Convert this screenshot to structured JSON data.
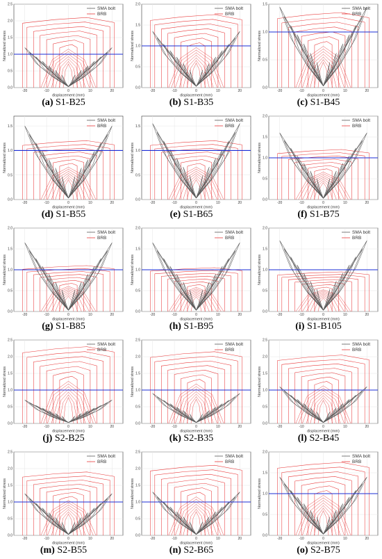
{
  "colors": {
    "sma": "#5a5a5a",
    "brb": "#e8393a",
    "threshold": "#1a2bd6",
    "grid": "#e6e6e6",
    "axis": "#333333"
  },
  "chart_data": [
    {
      "type": "line",
      "label": "(a)",
      "name": "S1-B25",
      "xlabel": "displacement (mm)",
      "ylabel": "Normalized stress",
      "xlim": [
        -25,
        25
      ],
      "ylim": [
        0,
        2.5
      ],
      "yticks": [
        0,
        0.5,
        1.0,
        1.5,
        2.0,
        2.5
      ],
      "xticks": [
        -20,
        -10,
        0,
        10,
        20
      ],
      "threshold": 1.0,
      "sma_peak": 1.2,
      "brb_peak": 2.1,
      "series": [
        {
          "name": "SMA bolt"
        },
        {
          "name": "BRB"
        }
      ]
    },
    {
      "type": "line",
      "label": "(b)",
      "name": "S1-B35",
      "xlabel": "displacement (mm)",
      "ylabel": "Normalized stress",
      "xlim": [
        -25,
        25
      ],
      "ylim": [
        0,
        2.0
      ],
      "yticks": [
        0,
        0.5,
        1.0,
        1.5,
        2.0
      ],
      "xticks": [
        -20,
        -10,
        0,
        10,
        20
      ],
      "threshold": 1.0,
      "sma_peak": 1.35,
      "brb_peak": 1.75,
      "series": [
        {
          "name": "SMA bolt"
        },
        {
          "name": "BRB"
        }
      ]
    },
    {
      "type": "line",
      "label": "(c)",
      "name": "S1-B45",
      "xlabel": "displacement (mm)",
      "ylabel": "Normalized stress",
      "xlim": [
        -25,
        25
      ],
      "ylim": [
        0,
        1.5
      ],
      "yticks": [
        0,
        0.5,
        1.0,
        1.5
      ],
      "xticks": [
        -20,
        -10,
        0,
        10,
        20
      ],
      "threshold": 1.0,
      "sma_peak": 1.45,
      "brb_peak": 1.35,
      "series": [
        {
          "name": "SMA bolt"
        },
        {
          "name": "BRB"
        }
      ]
    },
    {
      "type": "line",
      "label": "(d)",
      "name": "S1-B55",
      "xlabel": "displacement (mm)",
      "ylabel": "Normalized stress",
      "xlim": [
        -25,
        25
      ],
      "ylim": [
        0,
        1.7
      ],
      "yticks": [
        0,
        0.5,
        1.0,
        1.5
      ],
      "xticks": [
        -20,
        -10,
        0,
        10,
        20
      ],
      "threshold": 1.0,
      "sma_peak": 1.5,
      "brb_peak": 1.2,
      "series": [
        {
          "name": "SMA bolt"
        },
        {
          "name": "BRB"
        }
      ]
    },
    {
      "type": "line",
      "label": "(e)",
      "name": "S1-B65",
      "xlabel": "displacement (mm)",
      "ylabel": "Normalized stress",
      "xlim": [
        -25,
        25
      ],
      "ylim": [
        0,
        1.7
      ],
      "yticks": [
        0,
        0.5,
        1.0,
        1.5
      ],
      "xticks": [
        -20,
        -10,
        0,
        10,
        20
      ],
      "threshold": 1.0,
      "sma_peak": 1.55,
      "brb_peak": 1.2,
      "series": [
        {
          "name": "SMA bolt"
        },
        {
          "name": "BRB"
        }
      ]
    },
    {
      "type": "line",
      "label": "(f)",
      "name": "S1-B75",
      "xlabel": "displacement (mm)",
      "ylabel": "Normalized stress",
      "xlim": [
        -25,
        25
      ],
      "ylim": [
        0,
        2.0
      ],
      "yticks": [
        0,
        0.5,
        1.0,
        1.5,
        2.0
      ],
      "xticks": [
        -20,
        -10,
        0,
        10,
        20
      ],
      "threshold": 1.0,
      "sma_peak": 1.6,
      "brb_peak": 1.2,
      "series": [
        {
          "name": "SMA bolt"
        },
        {
          "name": "BRB"
        }
      ]
    },
    {
      "type": "line",
      "label": "(g)",
      "name": "S1-B85",
      "xlabel": "displacement (mm)",
      "ylabel": "Normalized stress",
      "xlim": [
        -25,
        25
      ],
      "ylim": [
        0,
        2.0
      ],
      "yticks": [
        0,
        0.5,
        1.0,
        1.5,
        2.0
      ],
      "xticks": [
        -20,
        -10,
        0,
        10,
        20
      ],
      "threshold": 1.0,
      "sma_peak": 1.65,
      "brb_peak": 1.1,
      "series": [
        {
          "name": "SMA bolt"
        },
        {
          "name": "BRB"
        }
      ]
    },
    {
      "type": "line",
      "label": "(h)",
      "name": "S1-B95",
      "xlabel": "displacement (mm)",
      "ylabel": "Normalized stress",
      "xlim": [
        -25,
        25
      ],
      "ylim": [
        0,
        2.0
      ],
      "yticks": [
        0,
        0.5,
        1.0,
        1.5,
        2.0
      ],
      "xticks": [
        -20,
        -10,
        0,
        10,
        20
      ],
      "threshold": 1.0,
      "sma_peak": 1.65,
      "brb_peak": 1.05,
      "series": [
        {
          "name": "SMA bolt"
        },
        {
          "name": "BRB"
        }
      ]
    },
    {
      "type": "line",
      "label": "(i)",
      "name": "S1-B105",
      "xlabel": "displacement (mm)",
      "ylabel": "Normalized stress",
      "xlim": [
        -25,
        25
      ],
      "ylim": [
        0,
        2.0
      ],
      "yticks": [
        0,
        0.5,
        1.0,
        1.5,
        2.0
      ],
      "xticks": [
        -20,
        -10,
        0,
        10,
        20
      ],
      "threshold": 1.0,
      "sma_peak": 1.7,
      "brb_peak": 0.95,
      "series": [
        {
          "name": "SMA bolt"
        },
        {
          "name": "BRB"
        }
      ]
    },
    {
      "type": "line",
      "label": "(j)",
      "name": "S2-B25",
      "xlabel": "displacement (mm)",
      "ylabel": "Normalized stress",
      "xlim": [
        -25,
        25
      ],
      "ylim": [
        0,
        2.5
      ],
      "yticks": [
        0,
        0.5,
        1.0,
        1.5,
        2.0,
        2.5
      ],
      "xticks": [
        -20,
        -10,
        0,
        10,
        20
      ],
      "threshold": 1.0,
      "sma_peak": 0.7,
      "brb_peak": 2.3,
      "series": [
        {
          "name": "SMA bolt"
        },
        {
          "name": "BRB"
        }
      ]
    },
    {
      "type": "line",
      "label": "(k)",
      "name": "S2-B35",
      "xlabel": "displacement (mm)",
      "ylabel": "Normalized stress",
      "xlim": [
        -25,
        25
      ],
      "ylim": [
        0,
        2.5
      ],
      "yticks": [
        0,
        0.5,
        1.0,
        1.5,
        2.0,
        2.5
      ],
      "xticks": [
        -20,
        -10,
        0,
        10,
        20
      ],
      "threshold": 1.0,
      "sma_peak": 0.9,
      "brb_peak": 2.15,
      "series": [
        {
          "name": "SMA bolt"
        },
        {
          "name": "BRB"
        }
      ]
    },
    {
      "type": "line",
      "label": "(l)",
      "name": "S2-B45",
      "xlabel": "displacement (mm)",
      "ylabel": "Normalized stress",
      "xlim": [
        -25,
        25
      ],
      "ylim": [
        0,
        2.5
      ],
      "yticks": [
        0,
        0.5,
        1.0,
        1.5,
        2.0,
        2.5
      ],
      "xticks": [
        -20,
        -10,
        0,
        10,
        20
      ],
      "threshold": 1.0,
      "sma_peak": 1.1,
      "brb_peak": 2.05,
      "series": [
        {
          "name": "SMA bolt"
        },
        {
          "name": "BRB"
        }
      ]
    },
    {
      "type": "line",
      "label": "(m)",
      "name": "S2-B55",
      "xlabel": "displacement (mm)",
      "ylabel": "Normalized stress",
      "xlim": [
        -25,
        25
      ],
      "ylim": [
        0,
        2.5
      ],
      "yticks": [
        0,
        0.5,
        1.0,
        1.5,
        2.0,
        2.5
      ],
      "xticks": [
        -20,
        -10,
        0,
        10,
        20
      ],
      "threshold": 1.0,
      "sma_peak": 1.25,
      "brb_peak": 1.9,
      "series": [
        {
          "name": "SMA bolt"
        },
        {
          "name": "BRB"
        }
      ]
    },
    {
      "type": "line",
      "label": "(n)",
      "name": "S2-B65",
      "xlabel": "displacement (mm)",
      "ylabel": "Normalized stress",
      "xlim": [
        -25,
        25
      ],
      "ylim": [
        0,
        2.5
      ],
      "yticks": [
        0,
        0.5,
        1.0,
        1.5,
        2.0,
        2.5
      ],
      "xticks": [
        -20,
        -10,
        0,
        10,
        20
      ],
      "threshold": 1.0,
      "sma_peak": 1.3,
      "brb_peak": 2.1,
      "series": [
        {
          "name": "SMA bolt"
        },
        {
          "name": "BRB"
        }
      ]
    },
    {
      "type": "line",
      "label": "(o)",
      "name": "S2-B75",
      "xlabel": "displacement (mm)",
      "ylabel": "Normalized stress",
      "xlim": [
        -25,
        25
      ],
      "ylim": [
        0,
        2.0
      ],
      "yticks": [
        0,
        0.5,
        1.0,
        1.5,
        2.0
      ],
      "xticks": [
        -20,
        -10,
        0,
        10,
        20
      ],
      "threshold": 1.0,
      "sma_peak": 1.4,
      "brb_peak": 1.75,
      "series": [
        {
          "name": "SMA bolt"
        },
        {
          "name": "BRB"
        }
      ]
    }
  ]
}
